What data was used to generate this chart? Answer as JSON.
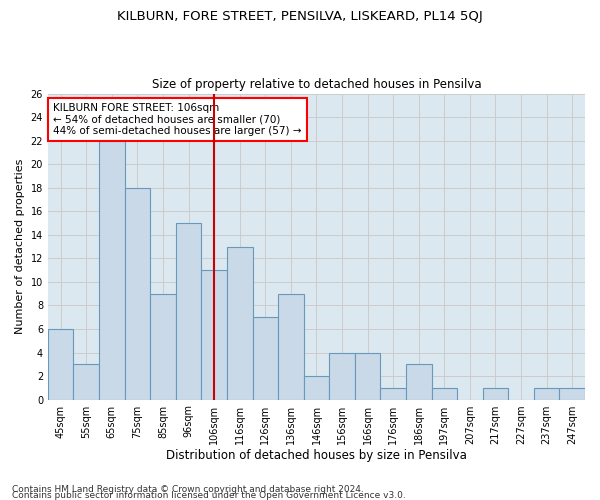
{
  "title1": "KILBURN, FORE STREET, PENSILVA, LISKEARD, PL14 5QJ",
  "title2": "Size of property relative to detached houses in Pensilva",
  "xlabel": "Distribution of detached houses by size in Pensilva",
  "ylabel": "Number of detached properties",
  "bins": [
    "45sqm",
    "55sqm",
    "65sqm",
    "75sqm",
    "85sqm",
    "96sqm",
    "106sqm",
    "116sqm",
    "126sqm",
    "136sqm",
    "146sqm",
    "156sqm",
    "166sqm",
    "176sqm",
    "186sqm",
    "197sqm",
    "207sqm",
    "217sqm",
    "227sqm",
    "237sqm",
    "247sqm"
  ],
  "values": [
    6,
    3,
    22,
    18,
    9,
    15,
    11,
    13,
    7,
    9,
    2,
    4,
    4,
    1,
    3,
    1,
    0,
    1,
    0,
    1,
    1
  ],
  "bar_color": "#c9d9e8",
  "bar_edge_color": "#6699bb",
  "bar_edge_width": 0.8,
  "red_line_bin": 6,
  "annotation_line1": "KILBURN FORE STREET: 106sqm",
  "annotation_line2": "← 54% of detached houses are smaller (70)",
  "annotation_line3": "44% of semi-detached houses are larger (57) →",
  "annotation_box_color": "white",
  "annotation_box_edge": "red",
  "red_line_color": "#cc0000",
  "ylim": [
    0,
    26
  ],
  "yticks": [
    0,
    2,
    4,
    6,
    8,
    10,
    12,
    14,
    16,
    18,
    20,
    22,
    24,
    26
  ],
  "grid_color": "#cccccc",
  "background_color": "#dce8f0",
  "footer1": "Contains HM Land Registry data © Crown copyright and database right 2024.",
  "footer2": "Contains public sector information licensed under the Open Government Licence v3.0.",
  "title1_fontsize": 9.5,
  "title2_fontsize": 8.5,
  "xlabel_fontsize": 8.5,
  "ylabel_fontsize": 8,
  "tick_fontsize": 7,
  "footer_fontsize": 6.5,
  "annotation_fontsize": 7.5
}
